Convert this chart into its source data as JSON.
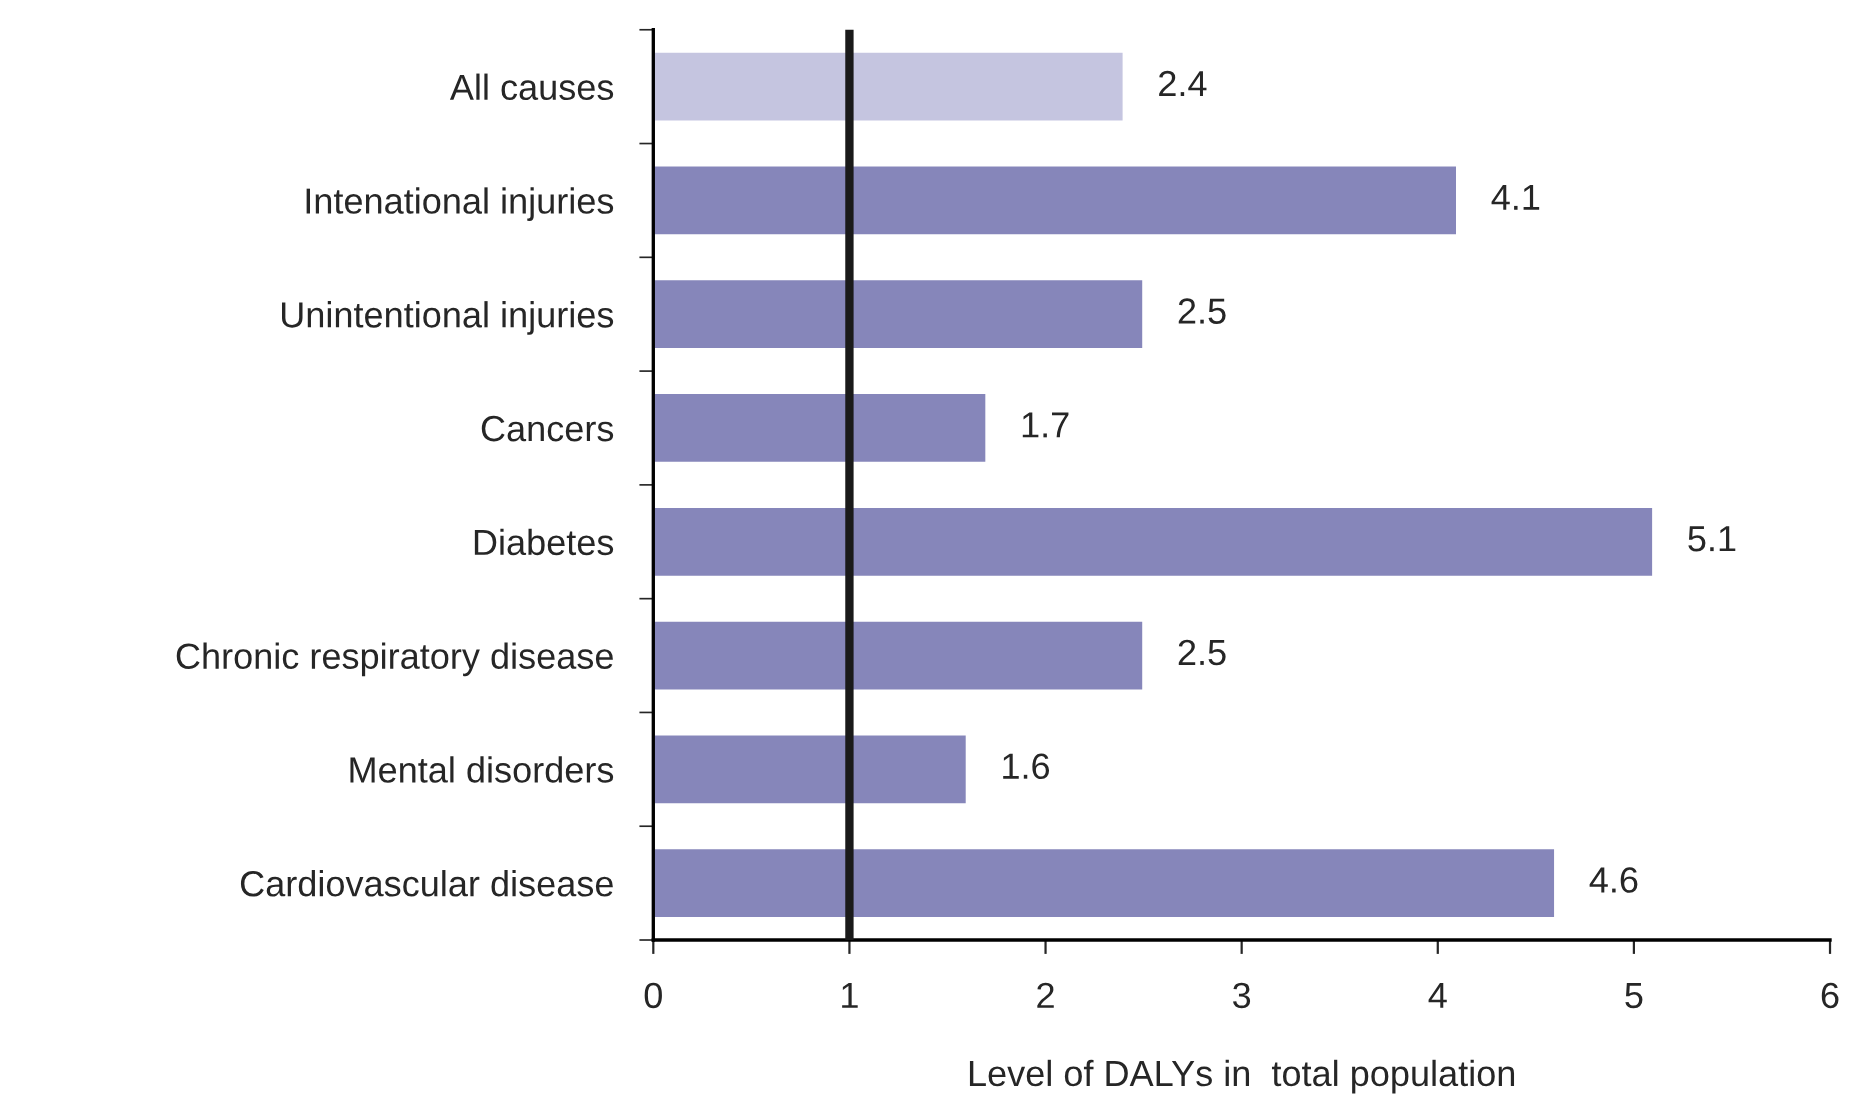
{
  "chart_data": {
    "type": "bar",
    "orientation": "horizontal",
    "xlabel": "Level of DALYs in  total population",
    "categories": [
      "All causes",
      "Intenational injuries",
      "Unintentional injuries",
      "Cancers",
      "Diabetes",
      "Chronic respiratory disease",
      "Mental disorders",
      "Cardiovascular disease"
    ],
    "values": [
      2.4,
      4.1,
      2.5,
      1.7,
      5.1,
      2.5,
      1.6,
      4.6
    ],
    "colors": [
      "#c5c5e0",
      "#8686ba",
      "#8686ba",
      "#8686ba",
      "#8686ba",
      "#8686ba",
      "#8686ba",
      "#8686ba"
    ],
    "xlim": [
      0,
      6
    ],
    "xticks": [
      0,
      1,
      2,
      3,
      4,
      5,
      6
    ],
    "ref_lines": [
      {
        "axis": "x",
        "value": 1,
        "color": "#1a1a1a"
      }
    ],
    "data_labels": true,
    "grid": false,
    "legend": false
  }
}
